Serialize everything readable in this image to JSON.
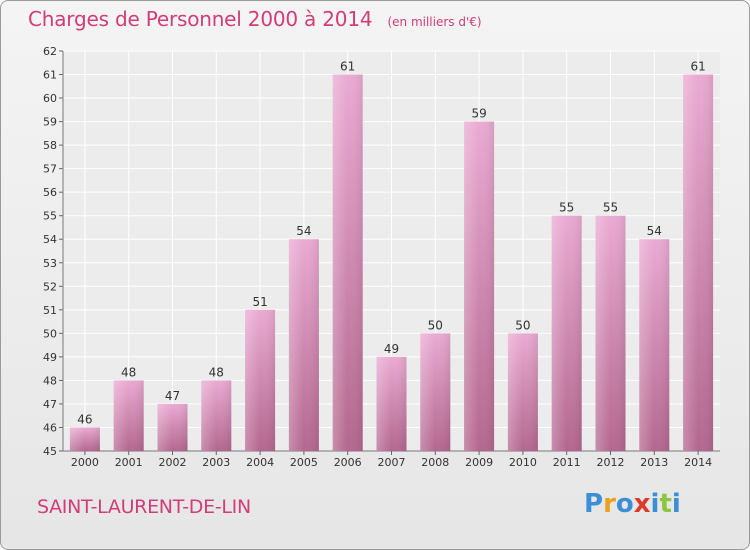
{
  "title": "Charges de Personnel 2000 à 2014",
  "subtitle": "(en milliers d'€)",
  "commune": "SAINT-LAURENT-DE-LIN",
  "logo": {
    "text": "Proxiti",
    "letters": [
      {
        "ch": "P",
        "color": "#3c8fd6"
      },
      {
        "ch": "r",
        "color": "#e9a21c"
      },
      {
        "ch": "o",
        "color": "#3c8fd6"
      },
      {
        "ch": "x",
        "color": "#dc3b2c"
      },
      {
        "ch": "i",
        "color": "#3c8fd6"
      },
      {
        "ch": "t",
        "color": "#8cc63f"
      },
      {
        "ch": "i",
        "color": "#3c8fd6"
      }
    ]
  },
  "colors": {
    "bar_light": "#eaaad2",
    "bar_dark": "#b4678f",
    "title": "#d23c78",
    "text": "#333333"
  },
  "chart_data": {
    "type": "bar",
    "categories": [
      "2000",
      "2001",
      "2002",
      "2003",
      "2004",
      "2005",
      "2006",
      "2007",
      "2008",
      "2009",
      "2010",
      "2011",
      "2012",
      "2013",
      "2014"
    ],
    "values": [
      46,
      48,
      47,
      48,
      51,
      54,
      61,
      49,
      50,
      59,
      50,
      55,
      55,
      54,
      61
    ],
    "ylim": [
      45,
      62
    ],
    "yticks": [
      45,
      46,
      47,
      48,
      49,
      50,
      51,
      52,
      53,
      54,
      55,
      56,
      57,
      58,
      59,
      60,
      61,
      62
    ],
    "grid": true,
    "xlabel": "",
    "ylabel": ""
  }
}
